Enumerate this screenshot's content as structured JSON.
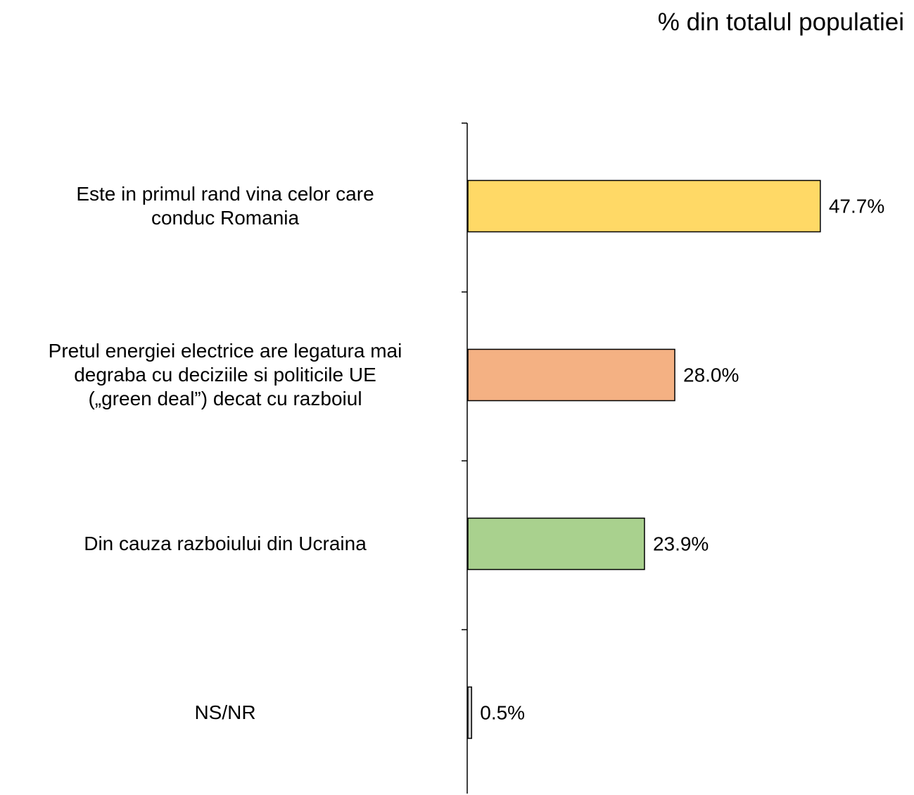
{
  "chart_data": {
    "type": "bar",
    "orientation": "horizontal",
    "title": "% din totalul populatiei",
    "categories": [
      "Este in primul rand vina celor care\nconduc Romania",
      "Pretul energiei electrice are legatura mai\ndegraba cu deciziile si politicile UE\n(„green deal”) decat cu razboiul",
      "Din cauza razboiului din Ucraina",
      "NS/NR"
    ],
    "values": [
      47.7,
      28.0,
      23.9,
      0.5
    ],
    "value_labels": [
      "47.7%",
      "28.0%",
      "23.9%",
      "0.5%"
    ],
    "colors": [
      "#ffd966",
      "#f4b183",
      "#a9d18e",
      "#d9d9d9"
    ],
    "xlim": [
      0,
      60
    ]
  }
}
